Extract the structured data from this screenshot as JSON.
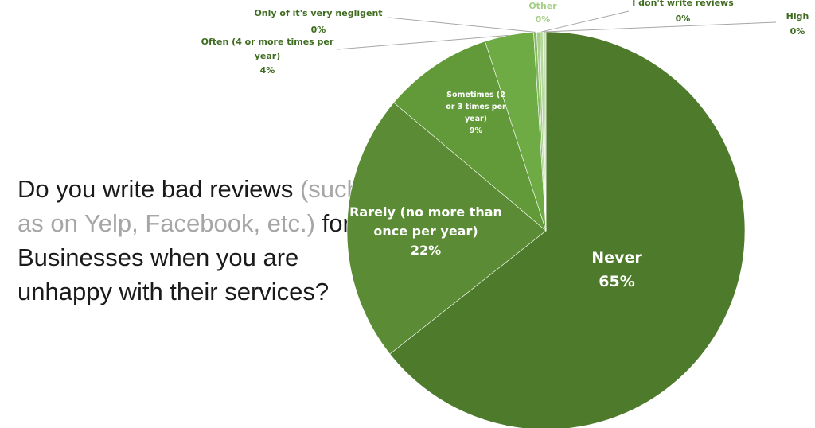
{
  "question": {
    "part1": "Do you write bad reviews",
    "part2": "(such as on Yelp, Facebook, etc.)",
    "part3": "for Businesses when you are unhappy with their services?"
  },
  "colors": {
    "question_text": "#1a1a1a",
    "question_muted": "#a6a6a6",
    "outside_label": "#3e6b1f",
    "slice_label": "#ffffff"
  },
  "chart_data": {
    "type": "pie",
    "title": "",
    "slices": [
      {
        "label": "Never",
        "percent_label": "65%",
        "value": 65,
        "color": "#4e7a2c"
      },
      {
        "label": "Rarely (no more than once per year)",
        "percent_label": "22%",
        "value": 22,
        "color": "#5b8c35"
      },
      {
        "label": "Sometimes (2 or 3 times per year)",
        "percent_label": "9%",
        "value": 9,
        "color": "#629a3a"
      },
      {
        "label": "Often (4 or more times per year)",
        "percent_label": "4%",
        "value": 4,
        "color": "#6fab45"
      },
      {
        "label": "Only of it's very negligent",
        "percent_label": "0%",
        "value": 0.25,
        "color": "#82b95c"
      },
      {
        "label": "Other",
        "percent_label": "0%",
        "value": 0.25,
        "color": "#a5cf88"
      },
      {
        "label": "I don't write reviews",
        "percent_label": "0%",
        "value": 0.25,
        "color": "#b6d89d"
      },
      {
        "label": "High",
        "percent_label": "0%",
        "value": 0.25,
        "color": "#c6e2b2"
      }
    ]
  }
}
